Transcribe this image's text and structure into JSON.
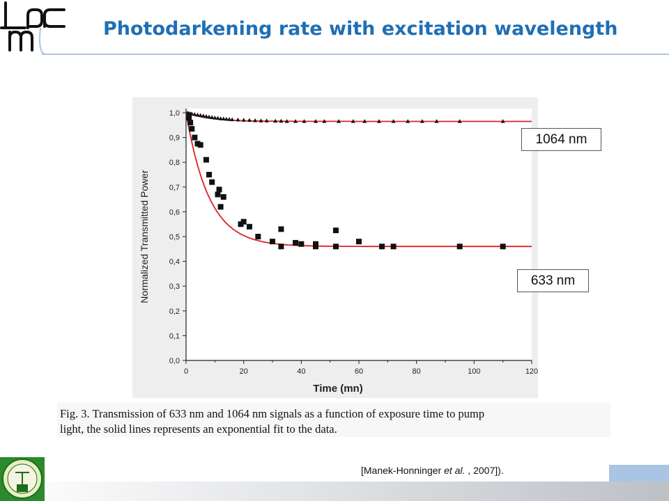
{
  "slide": {
    "title": "Photodarkening rate with excitation wavelength",
    "reference_prefix": "[Manek-Honninger ",
    "reference_italic": "et al.",
    "reference_suffix": " , 2007]).",
    "colors": {
      "title": "#1f6fb5",
      "accent_bar": "#a9c5e3",
      "logo_green": "#2b8a2b"
    }
  },
  "labels": {
    "l1064": "1064 nm",
    "l633": "633 nm"
  },
  "caption": "Fig. 3. Transmission of 633 nm and 1064 nm signals as a function of exposure time to pump\nlight, the solid lines represents an exponential fit to the data.",
  "chart_data": {
    "type": "scatter",
    "xlabel": "Time (mn)",
    "ylabel": "Normalized Transmitted Power",
    "xlim": [
      0,
      120
    ],
    "ylim": [
      0.0,
      1.0
    ],
    "xticks": [
      0,
      20,
      40,
      60,
      80,
      100,
      120
    ],
    "yticks": [
      "0,0",
      "0,1",
      "0,2",
      "0,3",
      "0,4",
      "0,5",
      "0,6",
      "0,7",
      "0,8",
      "0,9",
      "1,0"
    ],
    "fit_color": "#dd2222",
    "series": [
      {
        "label": "1064 nm",
        "marker": "triangle",
        "fit": {
          "y_inf": 0.965,
          "amp": 0.035,
          "tau": 8
        },
        "points": [
          [
            0.5,
            1.0
          ],
          [
            1,
            0.998
          ],
          [
            1.5,
            0.997
          ],
          [
            2,
            0.996
          ],
          [
            3,
            0.994
          ],
          [
            4,
            0.992
          ],
          [
            5,
            0.99
          ],
          [
            6,
            0.988
          ],
          [
            7,
            0.986
          ],
          [
            8,
            0.984
          ],
          [
            9,
            0.982
          ],
          [
            10,
            0.98
          ],
          [
            11,
            0.979
          ],
          [
            12,
            0.977
          ],
          [
            13,
            0.976
          ],
          [
            14,
            0.975
          ],
          [
            15,
            0.974
          ],
          [
            16,
            0.973
          ],
          [
            18,
            0.972
          ],
          [
            20,
            0.971
          ],
          [
            22,
            0.97
          ],
          [
            24,
            0.969
          ],
          [
            26,
            0.968
          ],
          [
            28,
            0.968
          ],
          [
            31,
            0.967
          ],
          [
            33,
            0.967
          ],
          [
            35,
            0.966
          ],
          [
            38,
            0.966
          ],
          [
            41,
            0.966
          ],
          [
            45,
            0.966
          ],
          [
            48,
            0.966
          ],
          [
            53,
            0.966
          ],
          [
            58,
            0.966
          ],
          [
            62,
            0.966
          ],
          [
            67,
            0.966
          ],
          [
            72,
            0.966
          ],
          [
            77,
            0.966
          ],
          [
            82,
            0.966
          ],
          [
            87,
            0.966
          ],
          [
            95,
            0.966
          ],
          [
            110,
            0.966
          ]
        ]
      },
      {
        "label": "633 nm",
        "marker": "square",
        "fit": {
          "y_inf": 0.46,
          "amp": 0.54,
          "tau": 8
        },
        "points": [
          [
            1,
            0.98
          ],
          [
            1.5,
            0.96
          ],
          [
            2,
            0.935
          ],
          [
            3,
            0.9
          ],
          [
            4,
            0.875
          ],
          [
            5,
            0.87
          ],
          [
            7,
            0.81
          ],
          [
            8,
            0.75
          ],
          [
            9,
            0.72
          ],
          [
            11,
            0.67
          ],
          [
            11.5,
            0.69
          ],
          [
            12,
            0.62
          ],
          [
            13,
            0.66
          ],
          [
            19,
            0.55
          ],
          [
            20,
            0.56
          ],
          [
            22,
            0.54
          ],
          [
            25,
            0.5
          ],
          [
            30,
            0.48
          ],
          [
            33,
            0.53
          ],
          [
            33,
            0.46
          ],
          [
            38,
            0.475
          ],
          [
            40,
            0.47
          ],
          [
            45,
            0.47
          ],
          [
            45,
            0.46
          ],
          [
            52,
            0.525
          ],
          [
            52,
            0.46
          ],
          [
            60,
            0.48
          ],
          [
            68,
            0.46
          ],
          [
            72,
            0.46
          ],
          [
            95,
            0.46
          ],
          [
            110,
            0.46
          ]
        ]
      }
    ]
  }
}
